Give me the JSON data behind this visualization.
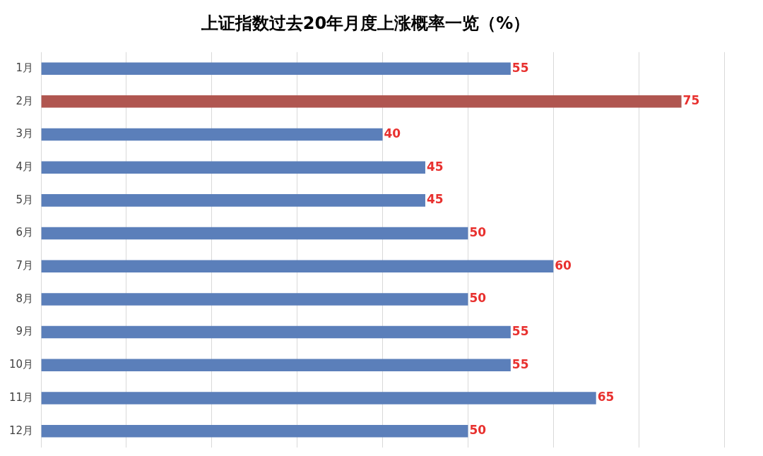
{
  "chart_data": {
    "type": "bar",
    "orientation": "horizontal",
    "title": "上证指数过去20年月度上涨概率一览（%）",
    "categories": [
      "1月",
      "2月",
      "3月",
      "4月",
      "5月",
      "6月",
      "7月",
      "8月",
      "9月",
      "10月",
      "11月",
      "12月"
    ],
    "values": [
      55,
      75,
      40,
      45,
      45,
      50,
      60,
      50,
      55,
      55,
      65,
      50
    ],
    "colors": [
      "#5b7fba",
      "#b05650",
      "#5b7fba",
      "#5b7fba",
      "#5b7fba",
      "#5b7fba",
      "#5b7fba",
      "#5b7fba",
      "#5b7fba",
      "#5b7fba",
      "#5b7fba",
      "#5b7fba"
    ],
    "xlim": [
      0,
      80
    ],
    "xticks": [
      {
        "value": 0,
        "label": null
      },
      {
        "value": 10,
        "label": null
      },
      {
        "value": 20,
        "label": null
      },
      {
        "value": 30,
        "label": null
      },
      {
        "value": 40,
        "label": null
      },
      {
        "value": 50,
        "label": null
      },
      {
        "value": 60,
        "label": null
      },
      {
        "value": 70,
        "label": null
      },
      {
        "value": 80,
        "label": null
      }
    ],
    "grid": "x",
    "tick_labels": "y",
    "data_labels": true,
    "legend": false
  }
}
